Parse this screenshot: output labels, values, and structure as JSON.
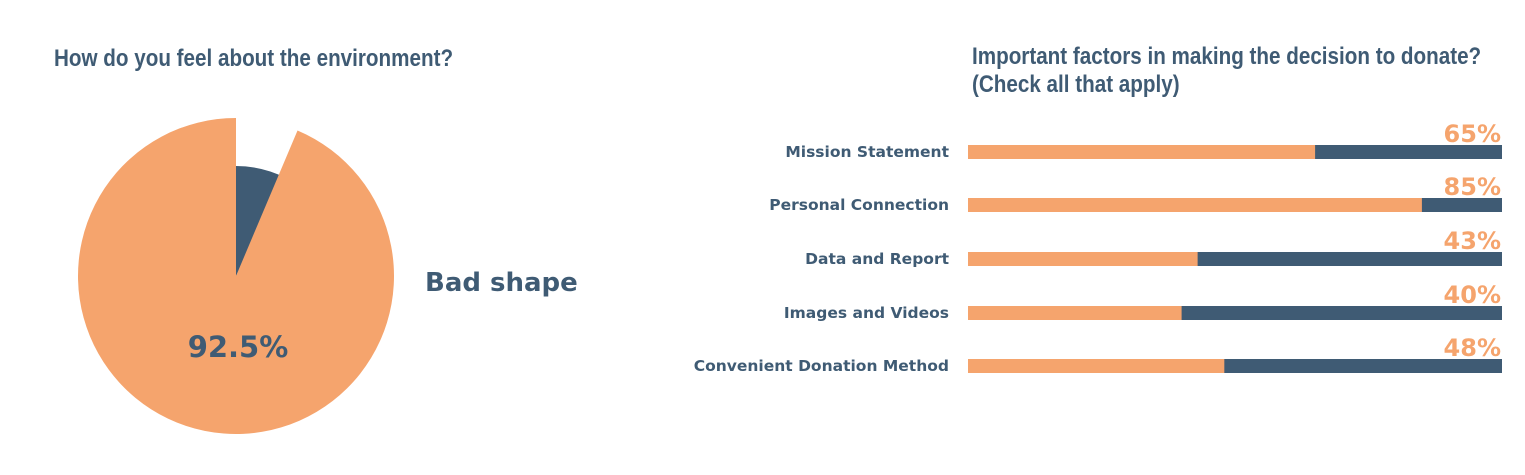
{
  "colors": {
    "accent": "#f5a46d",
    "dark": "#3f5b74"
  },
  "chart_data": [
    {
      "type": "pie",
      "title": "How do you feel about the environment?",
      "slices": [
        {
          "label": "Bad shape",
          "value": 92.5,
          "value_label": "92.5%",
          "color": "#f5a46d",
          "exploded": true
        },
        {
          "label": "",
          "value": 7.5,
          "value_label": "",
          "color": "#3f5b74",
          "exploded": false
        }
      ]
    },
    {
      "type": "bar",
      "orientation": "horizontal",
      "stacked_to": 100,
      "title": "Important factors in making the decision to donate? (Check all that apply)",
      "title_lines": [
        "Important factors in making the decision to donate?",
        "(Check all that apply)"
      ],
      "categories": [
        "Mission Statement",
        "Personal Connection",
        "Data and Report",
        "Images and Videos",
        "Convenient Donation Method"
      ],
      "values": [
        65,
        85,
        43,
        40,
        48
      ],
      "value_labels": [
        "65%",
        "85%",
        "43%",
        "40%",
        "48%"
      ],
      "xlim": [
        0,
        100
      ],
      "bar_color": "#f5a46d",
      "remainder_color": "#3f5b74"
    }
  ]
}
